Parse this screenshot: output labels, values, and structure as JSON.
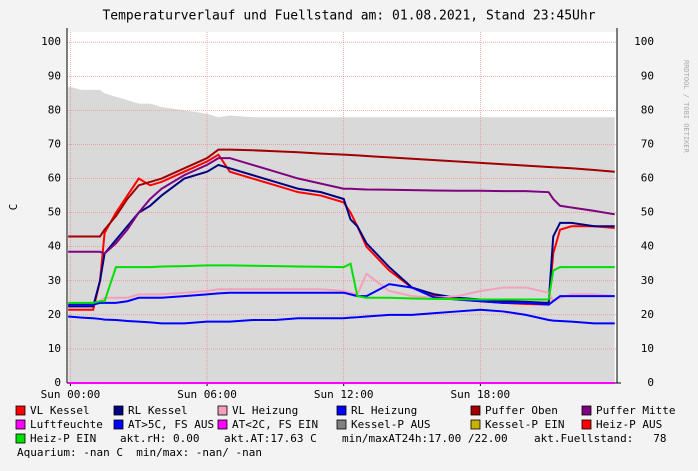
{
  "chart_data": {
    "type": "line",
    "title": "Temperaturverlauf und Fuellstand am: 01.08.2021, Stand 23:45Uhr",
    "side_text": "RRDTOOL / TOBI OETIKER",
    "y_label": "C",
    "xlim": [
      -0.15,
      24
    ],
    "ylim": [
      0,
      103
    ],
    "xticks": [
      {
        "value": 0,
        "label": "Sun 00:00"
      },
      {
        "value": 6,
        "label": "Sun 06:00"
      },
      {
        "value": 12,
        "label": "Sun 12:00"
      },
      {
        "value": 18,
        "label": "Sun 18:00"
      }
    ],
    "yticks": [
      0,
      10,
      20,
      30,
      40,
      50,
      60,
      70,
      80,
      90,
      100
    ],
    "grid": true,
    "x": [
      -0.1,
      0.5,
      1,
      1.3,
      1.5,
      2,
      2.5,
      3,
      3.5,
      4,
      5,
      6,
      6.5,
      7,
      8,
      9,
      10,
      11,
      12,
      12.3,
      12.6,
      13,
      14,
      15,
      16,
      17,
      18,
      19,
      20,
      21,
      21.2,
      21.5,
      22,
      23,
      23.9
    ],
    "area": {
      "color": "#d9d9d9",
      "values": [
        87,
        86,
        86,
        86,
        85,
        84,
        83,
        82,
        82,
        81,
        80,
        79,
        78,
        78.5,
        78,
        78,
        78,
        78,
        78,
        78,
        78,
        78,
        78,
        78,
        78,
        78,
        78,
        78,
        78,
        78,
        78,
        78,
        78,
        78,
        78
      ]
    },
    "series": [
      {
        "name": "VL Kessel",
        "color": "#ff0000",
        "values": [
          21.5,
          21.5,
          21.5,
          30,
          44,
          50,
          55,
          60,
          58,
          59,
          62,
          65,
          67,
          62,
          60,
          58,
          56,
          55,
          53,
          50,
          46,
          40,
          33,
          28,
          25.5,
          24.5,
          24,
          23.5,
          23.2,
          23,
          38,
          45,
          46,
          46,
          45.5
        ]
      },
      {
        "name": "RL Kessel",
        "color": "#000080",
        "values": [
          22.5,
          22.5,
          22.5,
          30,
          38,
          42,
          46,
          50,
          52,
          55,
          60,
          62,
          64,
          63,
          61,
          59,
          57,
          56,
          54,
          48,
          46,
          41,
          34,
          28,
          26,
          25,
          24.5,
          24,
          23.8,
          23.5,
          43,
          47,
          47,
          46,
          46
        ]
      },
      {
        "name": "VL Heizung",
        "color": "#f4a0b8",
        "values": [
          23,
          23,
          23,
          24,
          25,
          25,
          25,
          26,
          26,
          26,
          26.5,
          27,
          27.5,
          27.5,
          27.5,
          27.5,
          27.5,
          27.5,
          27,
          26.5,
          26,
          32,
          27,
          25.5,
          25,
          25.5,
          27,
          28,
          28,
          26.5,
          24,
          25,
          26,
          26,
          25.5
        ]
      },
      {
        "name": "RL Heizung",
        "color": "#0000ff",
        "values": [
          23,
          23,
          23,
          23.5,
          23.5,
          23.5,
          24,
          25,
          25,
          25,
          25.5,
          26,
          26.3,
          26.5,
          26.5,
          26.5,
          26.5,
          26.5,
          26.5,
          26,
          25.5,
          25.5,
          29,
          28,
          25,
          24.5,
          24,
          23.5,
          23.5,
          23,
          24,
          25.5,
          25.5,
          25.5,
          25.5
        ]
      },
      {
        "name": "Puffer Oben",
        "color": "#a00000",
        "values": [
          43,
          43,
          43,
          43,
          45,
          49,
          54,
          58,
          59,
          60,
          63,
          66,
          68.5,
          68.5,
          68.3,
          68,
          67.7,
          67.3,
          67,
          66.9,
          66.8,
          66.6,
          66.2,
          65.8,
          65.4,
          65,
          64.6,
          64.2,
          63.8,
          63.4,
          63.3,
          63.2,
          63,
          62.5,
          62
        ]
      },
      {
        "name": "Puffer Mitte",
        "color": "#800080",
        "values": [
          38.5,
          38.5,
          38.5,
          38.5,
          38,
          41,
          45,
          50,
          54,
          57,
          61,
          64,
          66,
          66,
          64,
          62,
          60,
          58.5,
          57,
          57,
          56.9,
          56.8,
          56.7,
          56.6,
          56.5,
          56.4,
          56.4,
          56.3,
          56.3,
          56,
          54,
          52,
          51.5,
          50.5,
          49.5
        ]
      },
      {
        "name": "Luftfeuchte",
        "color": "#ff00ff",
        "values": [
          0,
          0,
          0,
          0,
          0,
          0,
          0,
          0,
          0,
          0,
          0,
          0,
          0,
          0,
          0,
          0,
          0,
          0,
          0,
          0,
          0,
          0,
          0,
          0,
          0,
          0,
          0,
          0,
          0,
          0,
          0,
          0,
          0,
          0,
          0
        ]
      },
      {
        "name": "AT>5C, FS AUS",
        "color": "#0000ff",
        "values": [
          19.5,
          19.2,
          19,
          18.8,
          18.6,
          18.5,
          18.2,
          18,
          17.8,
          17.5,
          17.5,
          18,
          18,
          18,
          18.5,
          18.5,
          19,
          19,
          19,
          19.2,
          19.3,
          19.5,
          20,
          20,
          20.5,
          21,
          21.5,
          21,
          20,
          18.5,
          18.3,
          18.2,
          18,
          17.5,
          17.5
        ]
      },
      {
        "name": "AT<2C, FS EIN",
        "color": "#ff00ff"
      },
      {
        "name": "Kessel-P AUS",
        "color": "#808080"
      },
      {
        "name": "Kessel-P EIN",
        "color": "#c8b400"
      },
      {
        "name": "Heiz-P AUS",
        "color": "#ff0000"
      },
      {
        "name": "Heiz-P EIN",
        "color": "#00e000",
        "values": [
          23.5,
          23.5,
          23.5,
          24,
          24,
          34,
          34,
          34,
          34,
          34.2,
          34.3,
          34.5,
          34.5,
          34.5,
          34.4,
          34.3,
          34.2,
          34.1,
          34,
          35,
          25.5,
          25,
          25,
          24.8,
          24.7,
          24.6,
          24.5,
          24.5,
          24.5,
          24.5,
          33,
          34,
          34,
          34,
          34
        ]
      }
    ],
    "notes": [
      "akt.rH: 0.00",
      "akt.AT:17.63 C",
      "min/maxAT24h:17.00 /22.00",
      "akt.Fuellstand:   78",
      "Aquarium: -nan C  min/max: -nan/ -nan"
    ]
  }
}
